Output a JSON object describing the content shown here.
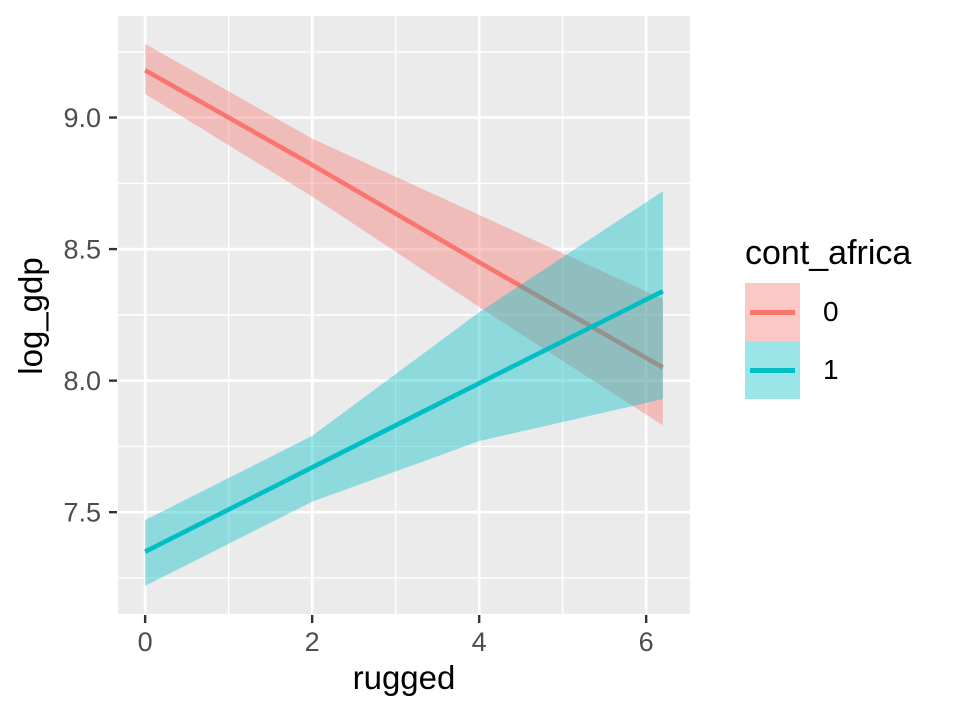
{
  "chart_data": {
    "type": "line",
    "title": "",
    "xlabel": "rugged",
    "ylabel": "log_gdp",
    "x": [
      0,
      2,
      4,
      6.2
    ],
    "series": [
      {
        "name": "0",
        "color": "#F8766D",
        "values": [
          9.18,
          8.82,
          8.45,
          8.05
        ],
        "ci_upper": [
          9.28,
          8.92,
          8.63,
          8.31
        ],
        "ci_lower": [
          9.09,
          8.7,
          8.28,
          7.83
        ]
      },
      {
        "name": "1",
        "color": "#00BFC4",
        "values": [
          7.35,
          7.67,
          7.99,
          8.34
        ],
        "ci_upper": [
          7.47,
          7.79,
          8.26,
          8.72
        ],
        "ci_lower": [
          7.22,
          7.54,
          7.77,
          7.93
        ]
      }
    ],
    "ribbon_opacity": 0.4,
    "xlim": [
      -0.325,
      6.525
    ],
    "ylim": [
      7.113,
      9.386
    ],
    "x_ticks": {
      "values": [
        0,
        2,
        4,
        6
      ],
      "labels": [
        "0",
        "2",
        "4",
        "6"
      ]
    },
    "y_ticks": {
      "values": [
        7.5,
        8.0,
        8.5,
        9.0
      ],
      "labels": [
        "7.5",
        "8.0",
        "8.5",
        "9.0"
      ]
    },
    "x_minor": [
      1,
      3,
      5
    ],
    "y_minor": [
      7.25,
      7.75,
      8.25,
      8.75,
      9.25
    ],
    "grid": "major+minor",
    "legend": {
      "title": "cont_africa",
      "position": "right"
    },
    "colors": {
      "panel_bg": "#EBEBEB",
      "grid": "#FFFFFF",
      "tick_mark": "#333333",
      "tick_label": "#4D4D4D",
      "axis_title": "#000000"
    }
  }
}
